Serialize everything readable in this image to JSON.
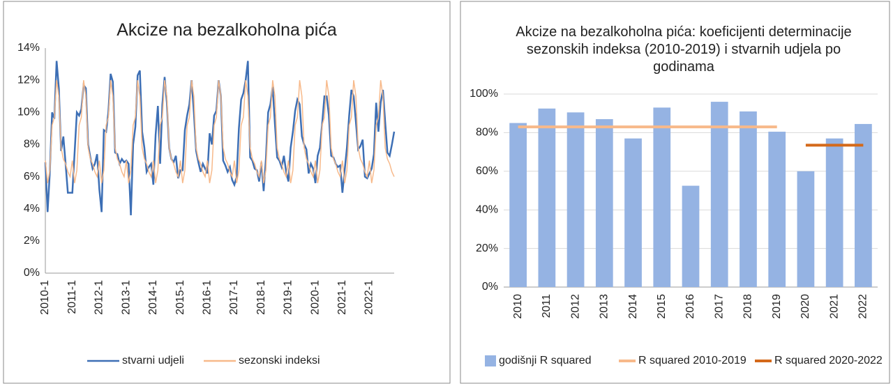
{
  "chart_data": [
    {
      "type": "line",
      "title": "Akcize na bezalkoholna pića",
      "categories": [
        "2010-1",
        null,
        null,
        null,
        null,
        null,
        null,
        null,
        null,
        null,
        null,
        null,
        "2011-1",
        null,
        null,
        null,
        null,
        null,
        null,
        null,
        null,
        null,
        null,
        null,
        "2012-1",
        null,
        null,
        null,
        null,
        null,
        null,
        null,
        null,
        null,
        null,
        null,
        "2013-1",
        null,
        null,
        null,
        null,
        null,
        null,
        null,
        null,
        null,
        null,
        null,
        "2014-1",
        null,
        null,
        null,
        null,
        null,
        null,
        null,
        null,
        null,
        null,
        null,
        "2015-1",
        null,
        null,
        null,
        null,
        null,
        null,
        null,
        null,
        null,
        null,
        null,
        "2016-1",
        null,
        null,
        null,
        null,
        null,
        null,
        null,
        null,
        null,
        null,
        null,
        "2017-1",
        null,
        null,
        null,
        null,
        null,
        null,
        null,
        null,
        null,
        null,
        null,
        "2018-1",
        null,
        null,
        null,
        null,
        null,
        null,
        null,
        null,
        null,
        null,
        null,
        "2019-1",
        null,
        null,
        null,
        null,
        null,
        null,
        null,
        null,
        null,
        null,
        null,
        "2020-1",
        null,
        null,
        null,
        null,
        null,
        null,
        null,
        null,
        null,
        null,
        null,
        "2021-1",
        null,
        null,
        null,
        null,
        null,
        null,
        null,
        null,
        null,
        null,
        null,
        "2022-1",
        null,
        null,
        null,
        null,
        null,
        null,
        null,
        null,
        null,
        null,
        null
      ],
      "series": [
        {
          "name": "stvarni udjeli",
          "color": "#3d6fb5",
          "values": [
            6.9,
            3.8,
            6.3,
            10.0,
            9.6,
            13.2,
            11.5,
            7.6,
            8.5,
            6.8,
            5.0,
            5.0,
            5.0,
            7.5,
            10.0,
            9.8,
            10.2,
            11.7,
            11.5,
            8.0,
            7.2,
            6.5,
            6.8,
            7.4,
            5.2,
            3.8,
            8.9,
            8.8,
            10.0,
            12.4,
            11.9,
            7.5,
            7.4,
            6.8,
            7.1,
            6.9,
            7.0,
            6.8,
            3.6,
            8.0,
            9.1,
            12.3,
            12.6,
            8.8,
            7.8,
            6.3,
            6.6,
            6.8,
            5.5,
            8.6,
            10.4,
            6.8,
            10.5,
            12.2,
            10.6,
            7.8,
            7.1,
            6.9,
            7.3,
            5.9,
            6.4,
            6.4,
            8.9,
            9.8,
            10.5,
            12.0,
            10.0,
            7.6,
            6.9,
            6.3,
            6.8,
            6.5,
            6.2,
            8.7,
            8.0,
            9.8,
            10.1,
            12.0,
            11.0,
            7.0,
            6.7,
            6.3,
            6.6,
            5.8,
            5.5,
            6.0,
            9.0,
            10.8,
            11.2,
            12.0,
            13.2,
            7.2,
            7.0,
            6.5,
            6.4,
            5.7,
            6.9,
            5.1,
            7.1,
            10.0,
            10.5,
            11.6,
            9.3,
            7.2,
            7.0,
            6.6,
            7.3,
            6.3,
            5.7,
            7.8,
            8.8,
            10.1,
            10.8,
            10.5,
            8.5,
            8.0,
            7.7,
            6.2,
            6.8,
            6.5,
            5.6,
            7.3,
            7.8,
            9.3,
            11.0,
            11.0,
            9.8,
            7.3,
            7.2,
            6.8,
            6.6,
            6.7,
            5.0,
            6.4,
            7.8,
            9.8,
            11.4,
            11.0,
            9.4,
            7.7,
            7.9,
            8.3,
            6.0,
            5.9,
            6.2,
            6.5,
            7.4,
            10.6,
            8.8,
            10.6,
            11.4,
            9.4,
            7.5,
            7.3,
            8.0,
            8.8
          ]
        },
        {
          "name": "sezonski indeksi",
          "color": "#f7b98a",
          "values": [
            7.0,
            5.6,
            6.4,
            9.2,
            9.7,
            12.0,
            11.0,
            7.8,
            7.1,
            6.8,
            6.3,
            6.0,
            7.0,
            5.6,
            6.4,
            9.2,
            9.7,
            12.0,
            11.0,
            7.8,
            7.1,
            6.8,
            6.3,
            6.0,
            7.0,
            5.6,
            6.4,
            9.2,
            9.7,
            12.0,
            11.0,
            7.8,
            7.1,
            6.8,
            6.3,
            6.0,
            7.0,
            5.6,
            6.4,
            9.2,
            9.7,
            12.0,
            11.0,
            7.8,
            7.1,
            6.8,
            6.3,
            6.0,
            7.0,
            5.6,
            6.4,
            9.2,
            9.7,
            12.0,
            11.0,
            7.8,
            7.1,
            6.8,
            6.3,
            6.0,
            7.0,
            5.6,
            6.4,
            9.2,
            9.7,
            12.0,
            11.0,
            7.8,
            7.1,
            6.8,
            6.3,
            6.0,
            7.0,
            5.6,
            6.4,
            9.2,
            9.7,
            12.0,
            11.0,
            7.8,
            7.1,
            6.8,
            6.3,
            6.0,
            7.0,
            5.6,
            6.4,
            9.2,
            9.7,
            12.0,
            11.0,
            7.8,
            7.1,
            6.8,
            6.3,
            6.0,
            7.0,
            5.6,
            6.4,
            9.2,
            9.7,
            12.0,
            11.0,
            7.8,
            7.1,
            6.8,
            6.3,
            6.0,
            7.0,
            5.6,
            6.4,
            9.2,
            9.7,
            12.0,
            11.0,
            7.8,
            7.1,
            6.8,
            6.3,
            6.0,
            7.0,
            5.6,
            6.4,
            9.2,
            9.7,
            12.0,
            11.0,
            7.8,
            7.1,
            6.8,
            6.3,
            6.0,
            7.0,
            5.6,
            6.4,
            9.2,
            9.7,
            12.0,
            11.0,
            7.8,
            7.1,
            6.8,
            6.3,
            6.0,
            7.0,
            5.6,
            6.4,
            9.2,
            9.7,
            12.0,
            11.0,
            7.8,
            7.1,
            6.8,
            6.3,
            6.0
          ]
        }
      ],
      "ylim": [
        0,
        14
      ],
      "yticks": [
        {
          "value": 0,
          "label": "0%"
        },
        {
          "value": 2,
          "label": "2%"
        },
        {
          "value": 4,
          "label": "4%"
        },
        {
          "value": 6,
          "label": "6%"
        },
        {
          "value": 8,
          "label": "8%"
        },
        {
          "value": 10,
          "label": "10%"
        },
        {
          "value": 12,
          "label": "12%"
        },
        {
          "value": 14,
          "label": "14%"
        }
      ],
      "grid": false,
      "legend": "bottom"
    },
    {
      "type": "bar",
      "title": "Akcize na bezalkoholna pića: koeficijenti determinacije sezonskih indeksa (2010-2019) i stvarnih udjela po godinama",
      "categories": [
        "2010",
        "2011",
        "2012",
        "2013",
        "2014",
        "2015",
        "2016",
        "2017",
        "2018",
        "2019",
        "2020",
        "2021",
        "2022"
      ],
      "series": [
        {
          "name": "godišnji R squared",
          "type": "bar",
          "color": "#95b3e3",
          "values": [
            85,
            92.5,
            90.5,
            87,
            77,
            93,
            52.5,
            96,
            91,
            80.5,
            60,
            77,
            84.5
          ]
        },
        {
          "name": "R squared 2010-2019",
          "type": "line",
          "color": "#f7b98a",
          "values": [
            83,
            83,
            83,
            83,
            83,
            83,
            83,
            83,
            83,
            83,
            null,
            null,
            null
          ]
        },
        {
          "name": "R squared 2020-2022",
          "type": "line",
          "color": "#d4691a",
          "values": [
            null,
            null,
            null,
            null,
            null,
            null,
            null,
            null,
            null,
            null,
            73.5,
            73.5,
            73.5
          ]
        }
      ],
      "ylim": [
        0,
        100
      ],
      "yticks": [
        {
          "value": 0,
          "label": "0%"
        },
        {
          "value": 20,
          "label": "20%"
        },
        {
          "value": 40,
          "label": "40%"
        },
        {
          "value": 60,
          "label": "60%"
        },
        {
          "value": 80,
          "label": "80%"
        },
        {
          "value": 100,
          "label": "100%"
        }
      ],
      "grid": true,
      "legend": "bottom"
    }
  ]
}
